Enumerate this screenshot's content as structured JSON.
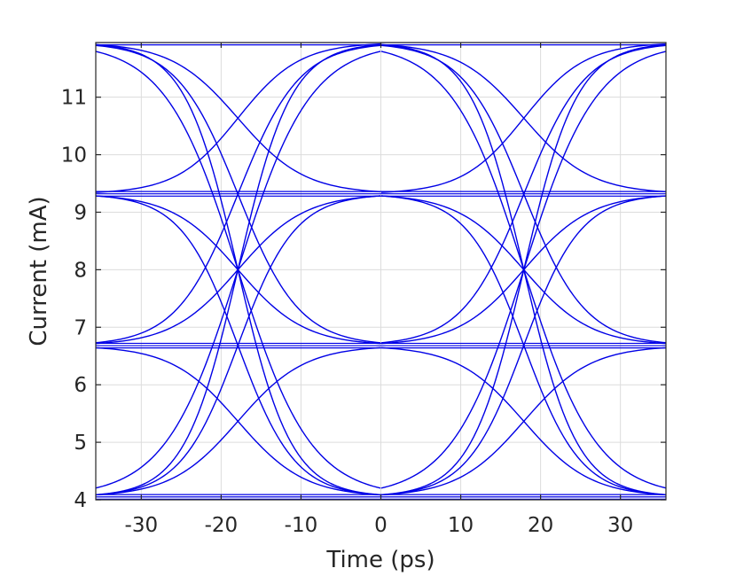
{
  "chart_data": {
    "type": "line",
    "title": "",
    "xlabel": "Time (ps)",
    "ylabel": "Current (mA)",
    "xlim": [
      -35.7,
      35.7
    ],
    "ylim": [
      4.0,
      11.95
    ],
    "xticks": [
      -30,
      -20,
      -10,
      0,
      10,
      20,
      30
    ],
    "xtick_labels": [
      "-30",
      "-20",
      "-10",
      "0",
      "10",
      "20",
      "30"
    ],
    "yticks": [
      4,
      5,
      6,
      7,
      8,
      9,
      10,
      11
    ],
    "ytick_labels": [
      "4",
      "5",
      "6",
      "7",
      "8",
      "9",
      "10",
      "11"
    ],
    "grid": true,
    "line_color": "#0000e6",
    "description_levels_mA": [
      4.05,
      6.68,
      9.32,
      11.95
    ],
    "unit_interval_ps": 35.7,
    "transitions": [
      {
        "from": 11.95,
        "to": 4.05,
        "crossing_t": -17.9,
        "sharpness": 0.3
      },
      {
        "from": 11.95,
        "to": 4.05,
        "crossing_t": -17.9,
        "sharpness": 0.22
      },
      {
        "from": 11.95,
        "to": 6.68,
        "crossing_t": -17.9,
        "sharpness": 0.26
      },
      {
        "from": 11.95,
        "to": 9.32,
        "crossing_t": -17.9,
        "sharpness": 0.24
      },
      {
        "from": 9.32,
        "to": 4.05,
        "crossing_t": -17.9,
        "sharpness": 0.28
      },
      {
        "from": 9.32,
        "to": 6.68,
        "crossing_t": -17.9,
        "sharpness": 0.24
      },
      {
        "from": 9.32,
        "to": 11.95,
        "crossing_t": -17.9,
        "sharpness": 0.26
      },
      {
        "from": 6.68,
        "to": 4.05,
        "crossing_t": -17.9,
        "sharpness": 0.24
      },
      {
        "from": 6.68,
        "to": 9.32,
        "crossing_t": -17.9,
        "sharpness": 0.24
      },
      {
        "from": 6.68,
        "to": 11.95,
        "crossing_t": -17.9,
        "sharpness": 0.26
      },
      {
        "from": 4.05,
        "to": 6.68,
        "crossing_t": -17.9,
        "sharpness": 0.24
      },
      {
        "from": 4.05,
        "to": 9.32,
        "crossing_t": -17.9,
        "sharpness": 0.28
      },
      {
        "from": 4.05,
        "to": 11.95,
        "crossing_t": -17.9,
        "sharpness": 0.3
      },
      {
        "from": 4.05,
        "to": 11.95,
        "crossing_t": -17.9,
        "sharpness": 0.22
      },
      {
        "from": 11.95,
        "to": 4.05,
        "crossing_t": 17.9,
        "sharpness": 0.3
      },
      {
        "from": 11.95,
        "to": 4.05,
        "crossing_t": 17.9,
        "sharpness": 0.22
      },
      {
        "from": 11.95,
        "to": 6.68,
        "crossing_t": 17.9,
        "sharpness": 0.26
      },
      {
        "from": 11.95,
        "to": 9.32,
        "crossing_t": 17.9,
        "sharpness": 0.24
      },
      {
        "from": 9.32,
        "to": 4.05,
        "crossing_t": 17.9,
        "sharpness": 0.28
      },
      {
        "from": 9.32,
        "to": 6.68,
        "crossing_t": 17.9,
        "sharpness": 0.24
      },
      {
        "from": 9.32,
        "to": 11.95,
        "crossing_t": 17.9,
        "sharpness": 0.26
      },
      {
        "from": 6.68,
        "to": 4.05,
        "crossing_t": 17.9,
        "sharpness": 0.24
      },
      {
        "from": 6.68,
        "to": 9.32,
        "crossing_t": 17.9,
        "sharpness": 0.24
      },
      {
        "from": 6.68,
        "to": 11.95,
        "crossing_t": 17.9,
        "sharpness": 0.26
      },
      {
        "from": 4.05,
        "to": 6.68,
        "crossing_t": 17.9,
        "sharpness": 0.24
      },
      {
        "from": 4.05,
        "to": 9.32,
        "crossing_t": 17.9,
        "sharpness": 0.28
      },
      {
        "from": 4.05,
        "to": 11.95,
        "crossing_t": 17.9,
        "sharpness": 0.3
      },
      {
        "from": 4.05,
        "to": 11.95,
        "crossing_t": 17.9,
        "sharpness": 0.22
      }
    ]
  }
}
